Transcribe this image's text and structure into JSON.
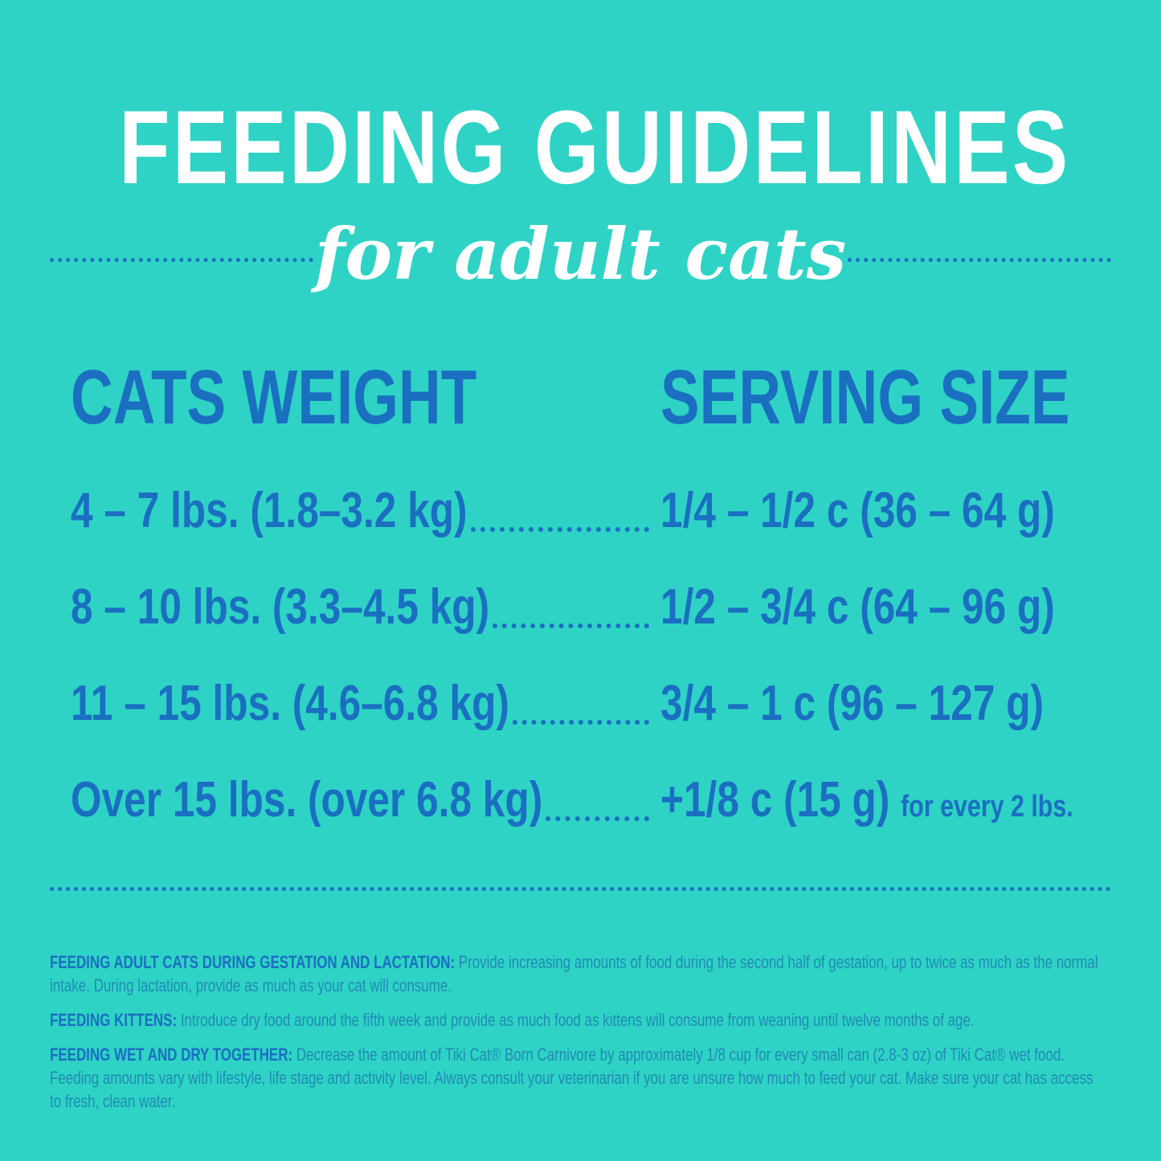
{
  "title": "FEEDING GUIDELINES",
  "subtitle": "for adult cats",
  "table": {
    "headers": [
      "CATS WEIGHT",
      "SERVING SIZE"
    ],
    "rows": [
      {
        "weight": "4 – 7 lbs. (1.8–3.2 kg)",
        "serving": "1/4 – 1/2 c (36 – 64 g)",
        "note": ""
      },
      {
        "weight": "8 – 10 lbs. (3.3–4.5 kg)",
        "serving": "1/2 – 3/4 c (64 – 96 g)",
        "note": ""
      },
      {
        "weight": "11 – 15 lbs. (4.6–6.8 kg)",
        "serving": "3/4 – 1 c (96 – 127 g)",
        "note": ""
      },
      {
        "weight": "Over 15 lbs. (over 6.8 kg)",
        "serving": "+1/8 c (15 g)",
        "note": "for every 2 lbs."
      }
    ]
  },
  "notes": [
    {
      "label": "FEEDING ADULT CATS DURING GESTATION AND LACTATION:",
      "text": " Provide increasing amounts of food during the second half of gestation, up to twice as much as the normal intake.  During lactation, provide as much as your cat will consume."
    },
    {
      "label": "FEEDING KITTENS:",
      "text": " Introduce dry food around the fifth week and provide as much food as kittens will consume from weaning until twelve months of age."
    },
    {
      "label": "FEEDING WET AND DRY TOGETHER:",
      "text": " Decrease the amount of Tiki Cat® Born Carnivore by approximately 1/8 cup for every small can (2.8-3 oz) of Tiki Cat® wet food. Feeding amounts vary with lifestyle, life stage and activity level.  Always consult your veterinarian if you are unsure how much to feed your cat. Make sure your cat has access to fresh, clean water."
    }
  ],
  "colors": {
    "background": "#2ed3c6",
    "accent": "#1a6fc0",
    "title": "#ffffff"
  }
}
